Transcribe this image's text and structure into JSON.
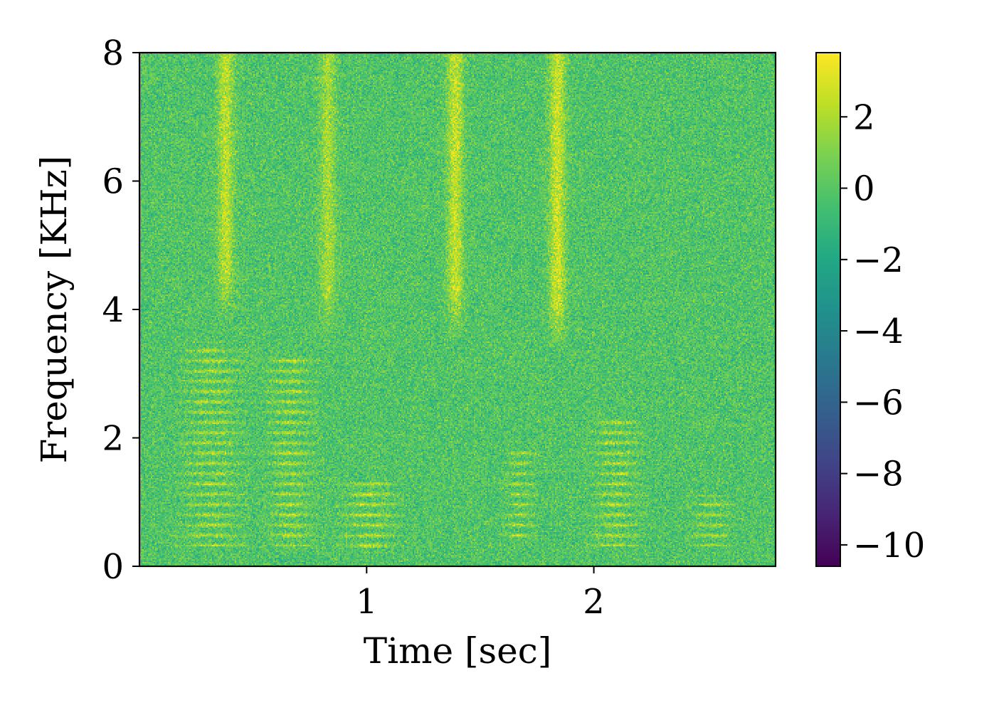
{
  "chart_data": {
    "type": "heatmap",
    "title": "",
    "xlabel": "Time [sec]",
    "ylabel": "Frequency [KHz]",
    "xlim": [
      0,
      2.8
    ],
    "ylim": [
      0,
      8
    ],
    "x_ticks": [
      1,
      2
    ],
    "x_tick_labels": [
      "1",
      "2"
    ],
    "y_ticks": [
      0,
      2,
      4,
      6,
      8
    ],
    "y_tick_labels": [
      "0",
      "2",
      "4",
      "6",
      "8"
    ],
    "colormap": "viridis",
    "colorbar": {
      "range": [
        -10.6,
        3.8
      ],
      "ticks": [
        2,
        0,
        -2,
        -4,
        -6,
        -8,
        -10
      ],
      "tick_labels": [
        "2",
        "0",
        "−2",
        "−4",
        "−6",
        "−8",
        "−10"
      ]
    },
    "background_level": -0.2,
    "features": [
      {
        "kind": "vertical_band",
        "x": 0.38,
        "y_range": [
          3.8,
          8
        ],
        "level": 2.5
      },
      {
        "kind": "vertical_band",
        "x": 0.83,
        "y_range": [
          3.5,
          8
        ],
        "level": 2.0
      },
      {
        "kind": "vertical_band",
        "x": 1.39,
        "y_range": [
          3.5,
          8
        ],
        "level": 2.7
      },
      {
        "kind": "vertical_band",
        "x": 1.84,
        "y_range": [
          3.3,
          8
        ],
        "level": 2.8
      },
      {
        "kind": "harmonic_stack",
        "x_range": [
          0.17,
          0.47
        ],
        "y_range": [
          0.3,
          3.5
        ],
        "level": 2.3
      },
      {
        "kind": "harmonic_stack",
        "x_range": [
          0.55,
          0.78
        ],
        "y_range": [
          0.3,
          3.3
        ],
        "level": 2.5
      },
      {
        "kind": "harmonic_stack",
        "x_range": [
          0.88,
          1.15
        ],
        "y_range": [
          0.2,
          1.3
        ],
        "level": 2.6
      },
      {
        "kind": "harmonic_stack",
        "x_range": [
          1.6,
          1.75
        ],
        "y_range": [
          0.4,
          1.8
        ],
        "level": 2.2
      },
      {
        "kind": "harmonic_stack",
        "x_range": [
          1.98,
          2.22
        ],
        "y_range": [
          0.3,
          2.3
        ],
        "level": 2.5
      },
      {
        "kind": "harmonic_stack",
        "x_range": [
          2.42,
          2.62
        ],
        "y_range": [
          0.3,
          1.1
        ],
        "level": 2.3
      }
    ]
  }
}
